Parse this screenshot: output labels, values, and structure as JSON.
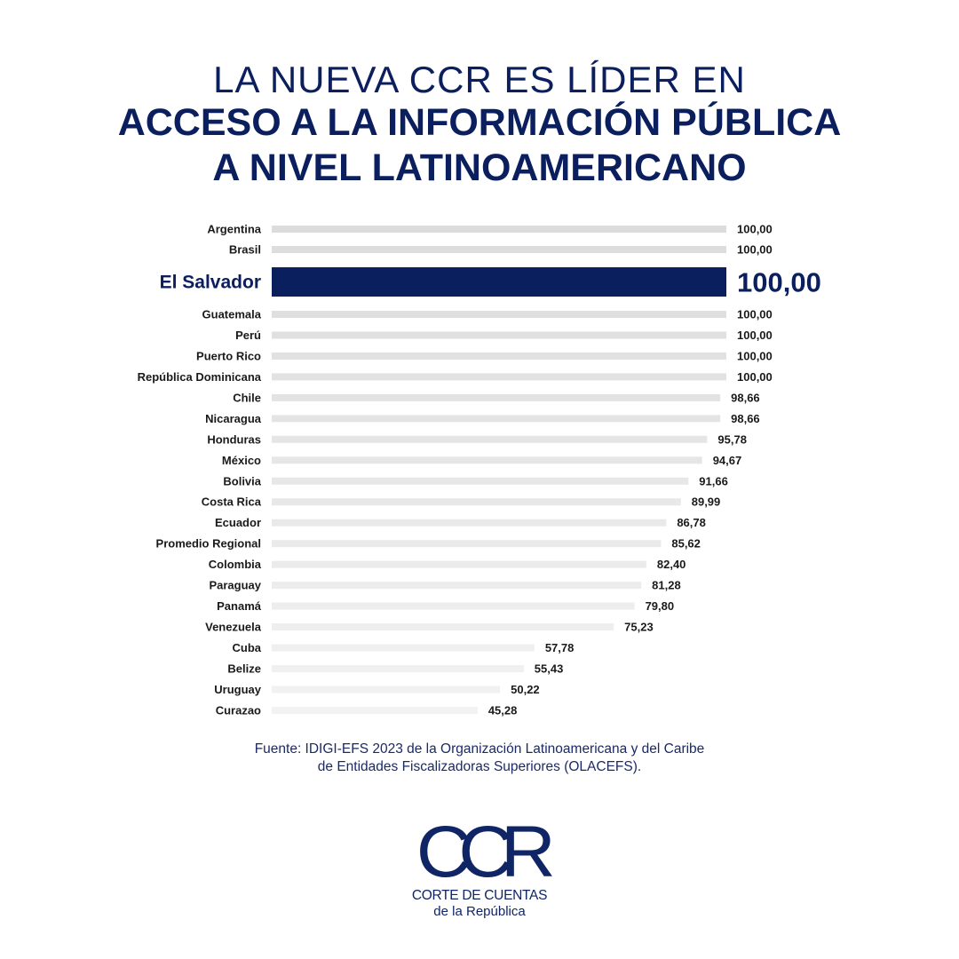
{
  "header": {
    "line1": "LA NUEVA CCR ES LÍDER EN",
    "line2": "ACCESO A LA INFORMACIÓN PÚBLICA",
    "line3": "A NIVEL LATINOAMERICANO"
  },
  "chart_data": {
    "type": "bar",
    "orientation": "horizontal",
    "categories": [
      "Argentina",
      "Brasil",
      "El Salvador",
      "Guatemala",
      "Perú",
      "Puerto Rico",
      "República Dominicana",
      "Chile",
      "Nicaragua",
      "Honduras",
      "México",
      "Bolivia",
      "Costa Rica",
      "Ecuador",
      "Promedio Regional",
      "Colombia",
      "Paraguay",
      "Panamá",
      "Venezuela",
      "Cuba",
      "Belize",
      "Uruguay",
      "Curazao"
    ],
    "values": [
      100,
      100,
      100,
      100,
      100,
      100,
      100,
      98.66,
      98.66,
      95.78,
      94.67,
      91.66,
      89.99,
      86.78,
      85.62,
      82.4,
      81.28,
      79.8,
      75.23,
      57.78,
      55.43,
      50.22,
      45.28
    ],
    "value_labels": [
      "100,00",
      "100,00",
      "100,00",
      "100,00",
      "100,00",
      "100,00",
      "100,00",
      "98,66",
      "98,66",
      "95,78",
      "94,67",
      "91,66",
      "89,99",
      "86,78",
      "85,62",
      "82,40",
      "81,28",
      "79,80",
      "75,23",
      "57,78",
      "55,43",
      "50,22",
      "45,28"
    ],
    "highlight": "El Salvador",
    "xlim": [
      0,
      100
    ],
    "grid": false,
    "colors": {
      "highlight": "#0a1f5e",
      "bar_start": "#dcdcdc",
      "bar_end": "#f2f2f2"
    }
  },
  "source": {
    "line1": "Fuente: IDIGI-EFS 2023 de la Organización Latinoamericana y del Caribe",
    "line2": "de Entidades Fiscalizadoras Superiores (OLACEFS)."
  },
  "logo": {
    "mark": "CCR",
    "line1": "CORTE DE CUENTAS",
    "line2": "de la República"
  }
}
